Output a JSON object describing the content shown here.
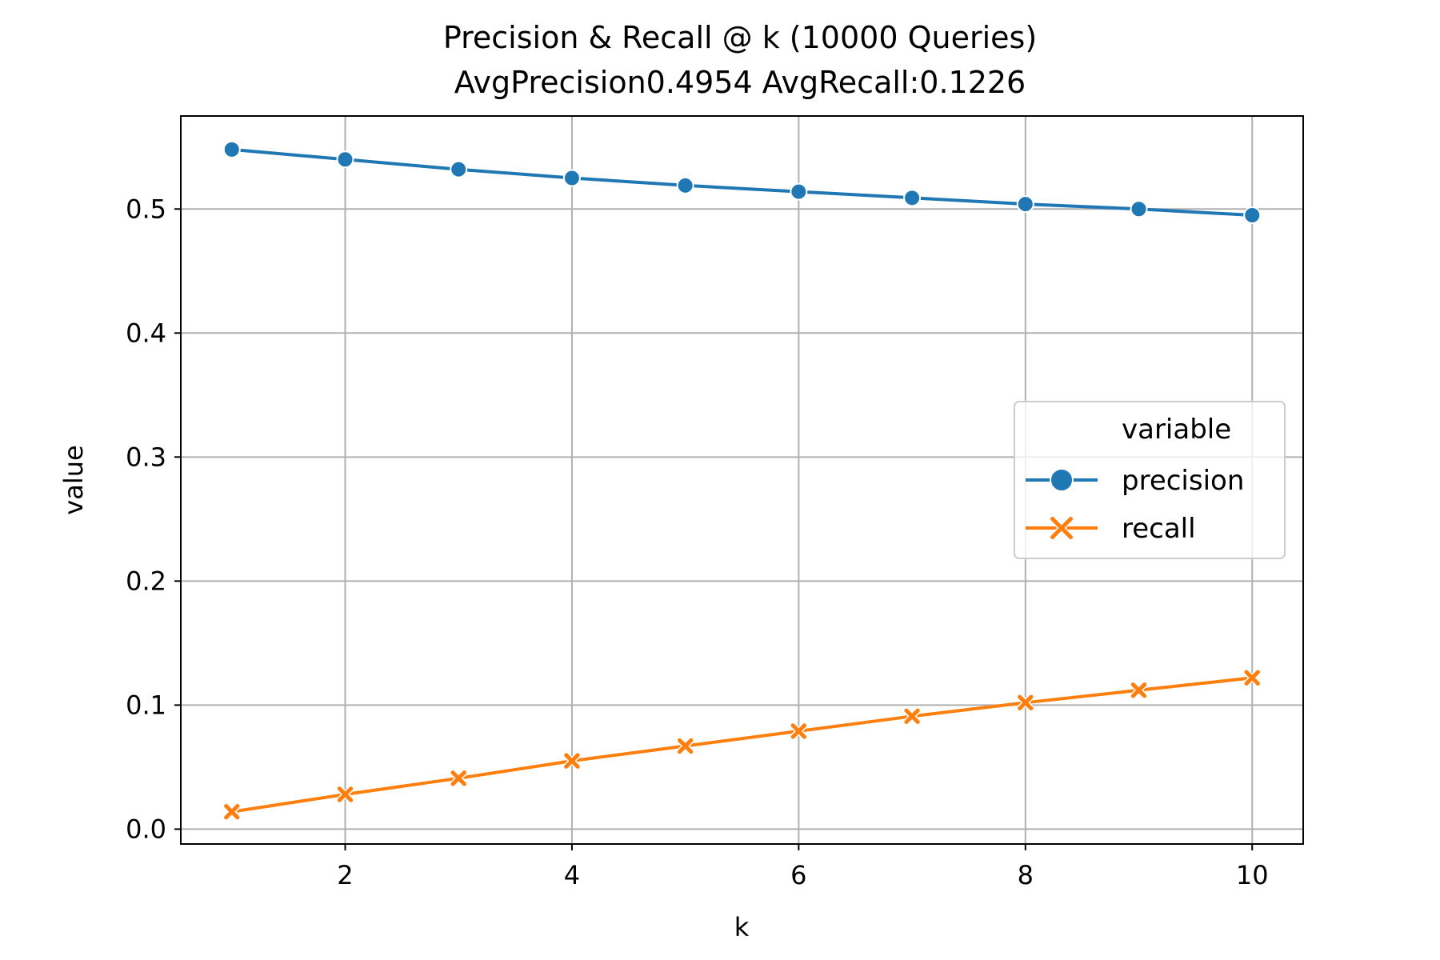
{
  "chart_data": {
    "type": "line",
    "title": "Precision & Recall @ k (10000 Queries)",
    "subtitle": "AvgPrecision0.4954 AvgRecall:0.1226",
    "xlabel": "k",
    "ylabel": "value",
    "x": [
      1,
      2,
      3,
      4,
      5,
      6,
      7,
      8,
      9,
      10
    ],
    "xlim": [
      0.55,
      10.45
    ],
    "ylim": [
      -0.012,
      0.575
    ],
    "xticks": [
      2,
      4,
      6,
      8,
      10
    ],
    "yticks": [
      0.0,
      0.1,
      0.2,
      0.3,
      0.4,
      0.5
    ],
    "grid": true,
    "legend": {
      "title": "variable",
      "placement": "center-right"
    },
    "series": [
      {
        "name": "precision",
        "color": "#1f77b4",
        "marker": "circle",
        "values": [
          0.548,
          0.54,
          0.532,
          0.525,
          0.519,
          0.514,
          0.509,
          0.504,
          0.5,
          0.495
        ]
      },
      {
        "name": "recall",
        "color": "#ff7f0e",
        "marker": "x",
        "values": [
          0.014,
          0.028,
          0.041,
          0.055,
          0.067,
          0.079,
          0.091,
          0.102,
          0.112,
          0.122
        ]
      }
    ]
  }
}
